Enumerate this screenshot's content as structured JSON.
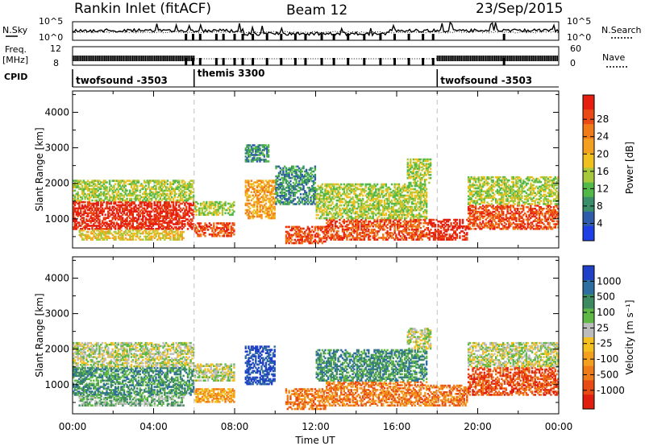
{
  "header": {
    "site": "Rankin Inlet (fitACF)",
    "beam": "Beam 12",
    "date": "23/Sep/2015"
  },
  "status_panels": {
    "nsky_label": "N.Sky",
    "nsky_ticks": [
      "10^5",
      "10^0"
    ],
    "nsearch_label": "N.Search",
    "nsearch_ticks": [
      "10^5",
      "10^0"
    ],
    "freq_label_1": "Freq.",
    "freq_label_2": "[MHz]",
    "freq_ticks": [
      "12",
      "8"
    ],
    "nave_label": "Nave",
    "nave_ticks": [
      "60",
      "0"
    ],
    "cpid_label": "CPID",
    "cpid_segments": [
      {
        "start_h": 0,
        "end_h": 6,
        "label": "twofsound -3503"
      },
      {
        "start_h": 6,
        "end_h": 18,
        "label": "themis 3300"
      },
      {
        "start_h": 18,
        "end_h": 24,
        "label": "twofsound -3503"
      }
    ],
    "gap_hours": [
      5.6,
      5.95,
      6.3,
      7.1,
      7.45,
      8.0,
      8.4,
      8.9,
      9.6,
      10.3,
      11.0,
      11.5,
      12.3,
      12.9,
      13.6,
      14.4,
      15.2,
      15.9,
      16.6,
      17.3,
      17.8,
      21.3
    ]
  },
  "chart_data": [
    {
      "type": "heatmap",
      "name": "power",
      "ylabel": "Slant Range [km]",
      "xlabel": "Time UT",
      "xlim_hours": [
        0,
        24
      ],
      "ylim": [
        180,
        4600
      ],
      "x_tick_labels": [
        "00:00",
        "04:00",
        "08:00",
        "12:00",
        "16:00",
        "20:00",
        "00:00"
      ],
      "y_ticks": [
        1000,
        2000,
        3000,
        4000
      ],
      "colorbar": {
        "label": "Power [dB]",
        "ticks": [
          "4",
          "8",
          "12",
          "16",
          "20",
          "24",
          "28"
        ],
        "colors": [
          "#1f3fe6",
          "#2f5ca8",
          "#3a8f6a",
          "#52b848",
          "#a6c83a",
          "#f0c020",
          "#f3a020",
          "#f07a18",
          "#ea4a14",
          "#e51e10"
        ]
      },
      "regions": [
        {
          "t0": 0.0,
          "t1": 6.0,
          "r0": 700,
          "r1": 1500,
          "level": 9
        },
        {
          "t0": 0.0,
          "t1": 6.0,
          "r0": 1500,
          "r1": 2100,
          "level": 4
        },
        {
          "t0": 0.3,
          "t1": 5.5,
          "r0": 400,
          "r1": 700,
          "level": 5
        },
        {
          "t0": 6.0,
          "t1": 8.0,
          "r0": 500,
          "r1": 900,
          "level": 8
        },
        {
          "t0": 6.0,
          "t1": 8.0,
          "r0": 1100,
          "r1": 1500,
          "level": 4
        },
        {
          "t0": 8.5,
          "t1": 10.0,
          "r0": 1000,
          "r1": 2100,
          "level": 6
        },
        {
          "t0": 8.5,
          "t1": 9.7,
          "r0": 2600,
          "r1": 3100,
          "level": 2
        },
        {
          "t0": 10.0,
          "t1": 12.0,
          "r0": 1400,
          "r1": 2500,
          "level": 2
        },
        {
          "t0": 10.5,
          "t1": 12.5,
          "r0": 300,
          "r1": 800,
          "level": 8
        },
        {
          "t0": 12.5,
          "t1": 17.5,
          "r0": 400,
          "r1": 1000,
          "level": 8
        },
        {
          "t0": 12.0,
          "t1": 17.5,
          "r0": 1000,
          "r1": 2000,
          "level": 4
        },
        {
          "t0": 16.5,
          "t1": 17.7,
          "r0": 2000,
          "r1": 2700,
          "level": 4
        },
        {
          "t0": 17.5,
          "t1": 19.5,
          "r0": 400,
          "r1": 1000,
          "level": 9
        },
        {
          "t0": 19.5,
          "t1": 24.0,
          "r0": 700,
          "r1": 1400,
          "level": 8
        },
        {
          "t0": 19.5,
          "t1": 24.0,
          "r0": 1400,
          "r1": 2200,
          "level": 4
        }
      ]
    },
    {
      "type": "heatmap",
      "name": "velocity",
      "ylabel": "Slant Range [km]",
      "xlabel": "Time UT",
      "xlim_hours": [
        0,
        24
      ],
      "ylim": [
        180,
        4600
      ],
      "x_tick_labels": [
        "00:00",
        "04:00",
        "08:00",
        "12:00",
        "16:00",
        "20:00",
        "00:00"
      ],
      "y_ticks": [
        1000,
        2000,
        3000,
        4000
      ],
      "colorbar": {
        "label": "Velocity [m s⁻¹]",
        "ticks": [
          "1000",
          "500",
          "100",
          "25",
          "-25",
          "-100",
          "-500",
          "-1000"
        ],
        "colors": [
          "#2040c8",
          "#2e6da0",
          "#3e8a60",
          "#5fb845",
          "#bcbcbc",
          "#f3c020",
          "#f3a020",
          "#ef7a18",
          "#e84a14",
          "#e01e10"
        ]
      },
      "regions": [
        {
          "t0": 0.0,
          "t1": 6.0,
          "r0": 700,
          "r1": 1500,
          "level": 2
        },
        {
          "t0": 0.0,
          "t1": 6.0,
          "r0": 1500,
          "r1": 2200,
          "level": 4
        },
        {
          "t0": 0.3,
          "t1": 5.5,
          "r0": 400,
          "r1": 700,
          "level": 3
        },
        {
          "t0": 6.0,
          "t1": 8.0,
          "r0": 500,
          "r1": 900,
          "level": 6
        },
        {
          "t0": 6.0,
          "t1": 8.0,
          "r0": 1100,
          "r1": 1600,
          "level": 4
        },
        {
          "t0": 8.5,
          "t1": 10.0,
          "r0": 1000,
          "r1": 2100,
          "level": 0
        },
        {
          "t0": 10.5,
          "t1": 12.5,
          "r0": 300,
          "r1": 900,
          "level": 7
        },
        {
          "t0": 12.5,
          "t1": 17.5,
          "r0": 400,
          "r1": 1100,
          "level": 7
        },
        {
          "t0": 12.0,
          "t1": 17.5,
          "r0": 1100,
          "r1": 2000,
          "level": 2
        },
        {
          "t0": 16.5,
          "t1": 17.7,
          "r0": 2000,
          "r1": 2600,
          "level": 4
        },
        {
          "t0": 17.5,
          "t1": 19.5,
          "r0": 400,
          "r1": 1000,
          "level": 7
        },
        {
          "t0": 19.5,
          "t1": 24.0,
          "r0": 700,
          "r1": 1500,
          "level": 8
        },
        {
          "t0": 19.5,
          "t1": 24.0,
          "r0": 1500,
          "r1": 2200,
          "level": 4
        }
      ]
    }
  ]
}
